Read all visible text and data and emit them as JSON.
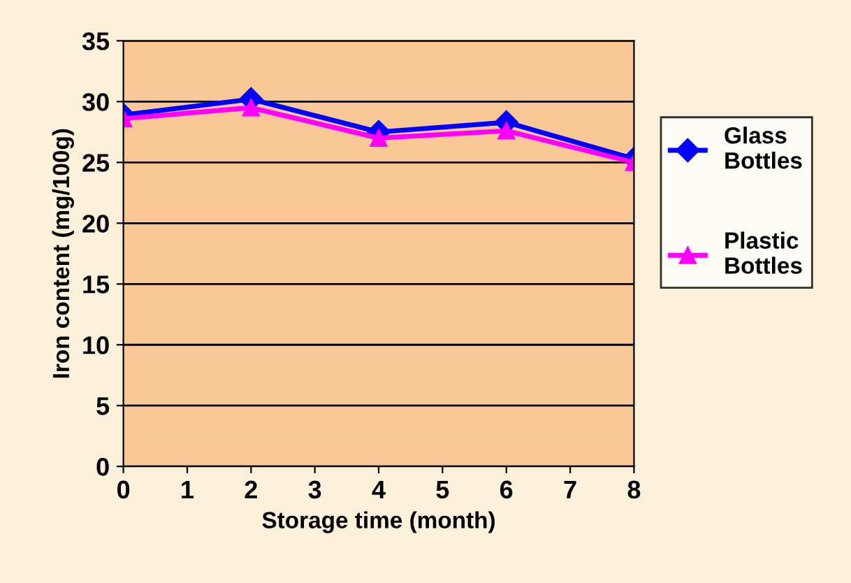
{
  "chart_data": {
    "type": "line",
    "xlabel": "Storage time (month)",
    "ylabel": "Iron content (mg/100g)",
    "x": [
      0,
      2,
      4,
      6,
      8
    ],
    "series": [
      {
        "name": "Glass\nBottles",
        "color": "#0000ff",
        "marker": "diamond",
        "values": [
          28.9,
          30.2,
          27.5,
          28.3,
          25.3
        ]
      },
      {
        "name": "Plastic\nBottles",
        "color": "#ff00ff",
        "marker": "triangle",
        "values": [
          28.6,
          29.5,
          27.0,
          27.6,
          25.0
        ]
      }
    ],
    "xlim": [
      0,
      8
    ],
    "xticks": [
      0,
      1,
      2,
      3,
      4,
      5,
      6,
      7,
      8
    ],
    "ylim": [
      0,
      35
    ],
    "yticks": [
      0,
      5,
      10,
      15,
      20,
      25,
      30,
      35
    ],
    "grid": "y",
    "legend": "right"
  }
}
